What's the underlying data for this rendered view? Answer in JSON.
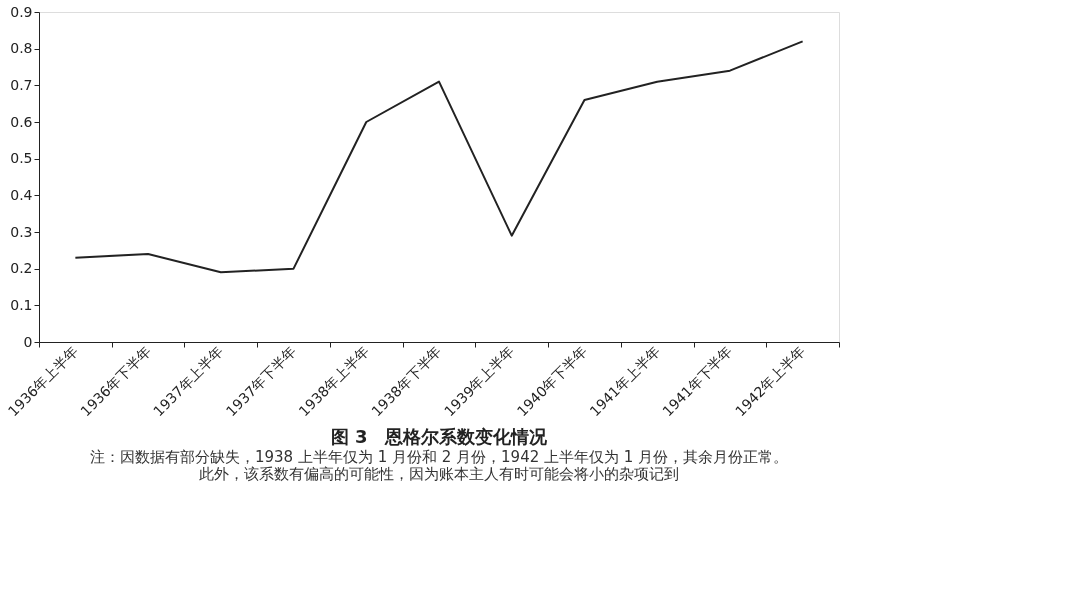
{
  "chart_data": {
    "type": "line",
    "title": "图 3　恩格尔系数变化情况",
    "categories": [
      "1936年上半年",
      "1936年下半年",
      "1937年上半年",
      "1937年下半年",
      "1938年上半年",
      "1938年下半年",
      "1939年上半年",
      "1940年下半年",
      "1941年上半年",
      "1941年下半年",
      "1942年上半年"
    ],
    "series": [
      {
        "color": "#222222",
        "values": [
          0.23,
          0.24,
          0.19,
          0.2,
          0.6,
          0.71,
          0.29,
          0.66,
          0.71,
          0.74,
          0.82
        ]
      }
    ],
    "ylim": [
      0,
      0.9
    ],
    "yticks": [
      0,
      0.1,
      0.2,
      0.3,
      0.4,
      0.5,
      0.6,
      0.7,
      0.8,
      0.9
    ],
    "grid": false,
    "legend": false,
    "marker": "none",
    "line_style": "solid",
    "annotations": [
      "注：因数据有部分缺失，1938 上半年仅为 1 月份和 2 月份，1942 上半年仅为 1 月份，其余月份正常。",
      "此外，该系数有偏高的可能性，因为账本主人有时可能会将小的杂项记到"
    ]
  }
}
